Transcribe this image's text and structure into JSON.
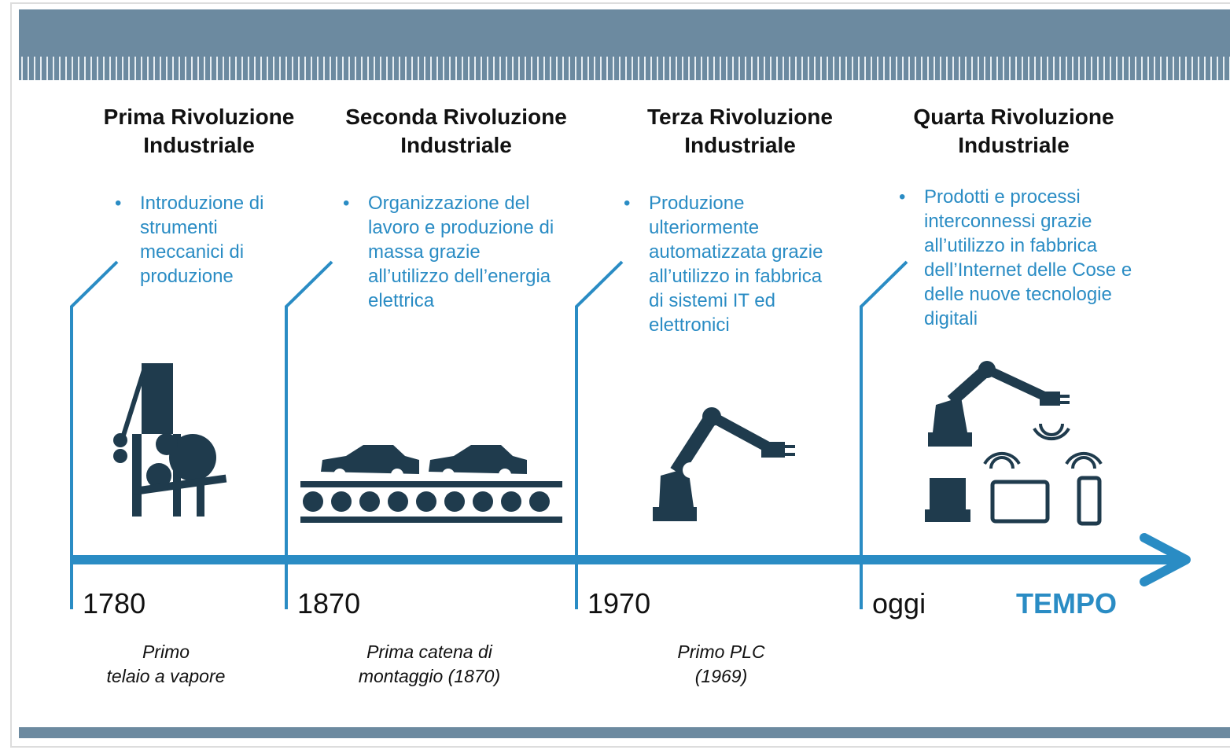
{
  "revolutions": [
    {
      "title": [
        "Prima Rivoluzione",
        "Industriale"
      ],
      "bullet": [
        "Introduzione di",
        "strumenti",
        "meccanici di",
        "produzione"
      ],
      "year": "1780",
      "note": [
        "Primo",
        "telaio a vapore"
      ]
    },
    {
      "title": [
        "Seconda Rivoluzione",
        "Industriale"
      ],
      "bullet": [
        "Organizzazione del",
        "lavoro e produzione di",
        "massa grazie",
        "all’utilizzo dell’energia",
        "elettrica"
      ],
      "year": "1870",
      "note": [
        "Prima catena di",
        "montaggio (1870)"
      ]
    },
    {
      "title": [
        "Terza Rivoluzione",
        "Industriale"
      ],
      "bullet": [
        "Produzione",
        "ulteriormente",
        "automatizzata grazie",
        "all’utilizzo in fabbrica",
        "di sistemi IT ed",
        "elettronici"
      ],
      "year": "1970",
      "note": [
        "Primo PLC",
        "(1969)"
      ]
    },
    {
      "title": [
        "Quarta Rivoluzione",
        "Industriale"
      ],
      "bullet": [
        "Prodotti e processi",
        "interconnessi grazie",
        "all’utilizzo in fabbrica",
        "dell’Internet delle Cose e",
        "delle nuove tecnologie",
        "digitali"
      ],
      "year": "oggi",
      "note": []
    }
  ],
  "axis_label": "TEMPO"
}
